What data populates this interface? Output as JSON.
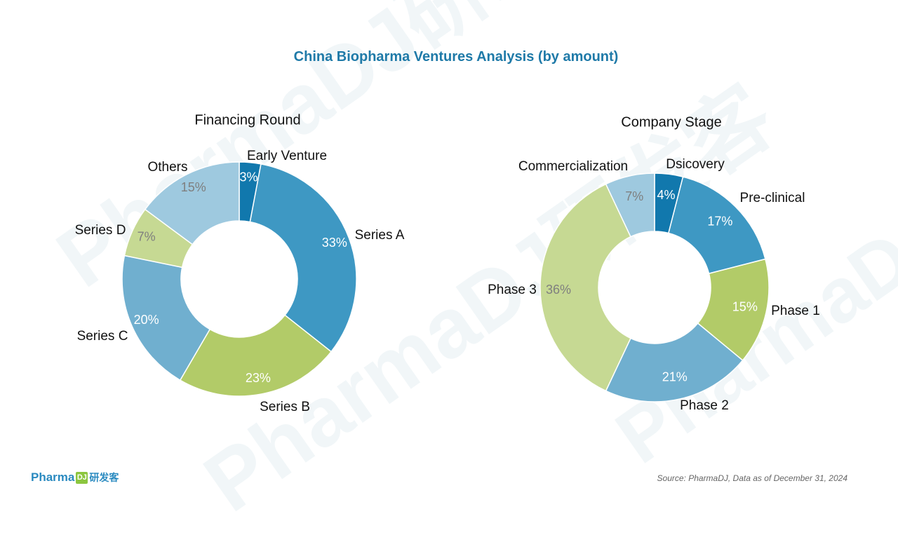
{
  "title": "China Biopharma Ventures Analysis (by amount)",
  "source": "Source: PharmaDJ, Data as of December 31, 2024",
  "logo": {
    "word": "Pharma",
    "box": "DJ",
    "cn": "研发客"
  },
  "watermarks": [
    "PharmaDJ研发客",
    "PharmaDJ研发客",
    "PharmaDJ研发客"
  ],
  "chart_data": [
    {
      "type": "donut",
      "title": "Financing Round",
      "categories": [
        "Early Venture",
        "Series A",
        "Series B",
        "Series C",
        "Series D",
        "Others"
      ],
      "values": [
        3,
        33,
        23,
        20,
        7,
        15
      ],
      "value_labels": [
        "3%",
        "33%",
        "23%",
        "20%",
        "7%",
        "15%"
      ],
      "colors": [
        "#1178ad",
        "#3e98c3",
        "#b2cb68",
        "#70afcf",
        "#c6d993",
        "#9ec9df"
      ],
      "label_colors": [
        "#ffffff",
        "#ffffff",
        "#ffffff",
        "#ffffff",
        "#7f7f7f",
        "#7f7f7f"
      ]
    },
    {
      "type": "donut",
      "title": "Company Stage",
      "categories": [
        "Dsicovery",
        "Pre-clinical",
        "Phase 1",
        "Phase 2",
        "Phase 3",
        "Commercialization"
      ],
      "values": [
        4,
        17,
        15,
        21,
        36,
        7
      ],
      "value_labels": [
        "4%",
        "17%",
        "15%",
        "21%",
        "36%",
        "7%"
      ],
      "colors": [
        "#1178ad",
        "#3e98c3",
        "#b2cb68",
        "#70afcf",
        "#c6d993",
        "#9ec9df"
      ],
      "label_colors": [
        "#ffffff",
        "#ffffff",
        "#ffffff",
        "#ffffff",
        "#7f7f7f",
        "#7f7f7f"
      ]
    }
  ]
}
